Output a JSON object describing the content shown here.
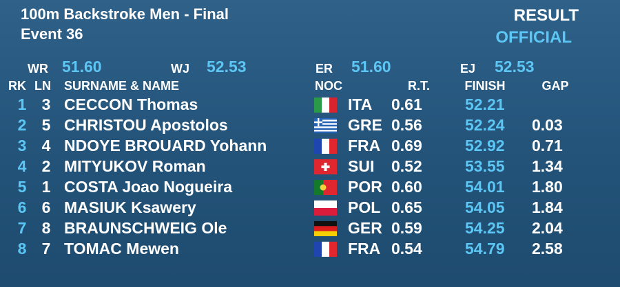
{
  "header": {
    "title": "100m Backstroke Men - Final",
    "event": "Event 36",
    "result": "RESULT",
    "status": "OFFICIAL"
  },
  "records": [
    {
      "label": "WR",
      "value": "51.60"
    },
    {
      "label": "WJ",
      "value": "52.53"
    },
    {
      "label": "ER",
      "value": "51.60"
    },
    {
      "label": "EJ",
      "value": "52.53"
    }
  ],
  "columns": {
    "rk": "RK",
    "ln": "LN",
    "name": "SURNAME & NAME",
    "noc": "NOC",
    "rt": "R.T.",
    "finish": "FINISH",
    "gap": "GAP"
  },
  "rows": [
    {
      "rk": "1",
      "ln": "3",
      "name": "CECCON Thomas",
      "noc": "ITA",
      "rt": "0.61",
      "finish": "52.21"
    },
    {
      "rk": "2",
      "ln": "5",
      "name": "CHRISTOU Apostolos",
      "noc": "GRE",
      "rt": "0.56",
      "finish": "52.24",
      "gap": "0.03"
    },
    {
      "rk": "3",
      "ln": "4",
      "name": "NDOYE BROUARD Yohann",
      "noc": "FRA",
      "rt": "0.69",
      "finish": "52.92",
      "gap": "0.71"
    },
    {
      "rk": "4",
      "ln": "2",
      "name": "MITYUKOV Roman",
      "noc": "SUI",
      "rt": "0.52",
      "finish": "53.55",
      "gap": "1.34"
    },
    {
      "rk": "5",
      "ln": "1",
      "name": "COSTA Joao Nogueira",
      "noc": "POR",
      "rt": "0.60",
      "finish": "54.01",
      "gap": "1.80"
    },
    {
      "rk": "6",
      "ln": "6",
      "name": "MASIUK Ksawery",
      "noc": "POL",
      "rt": "0.65",
      "finish": "54.05",
      "gap": "1.84"
    },
    {
      "rk": "7",
      "ln": "8",
      "name": "BRAUNSCHWEIG Ole",
      "noc": "GER",
      "rt": "0.59",
      "finish": "54.25",
      "gap": "2.04"
    },
    {
      "rk": "8",
      "ln": "7",
      "name": "TOMAC Mewen",
      "noc": "FRA",
      "rt": "0.54",
      "finish": "54.79",
      "gap": "2.58"
    }
  ]
}
